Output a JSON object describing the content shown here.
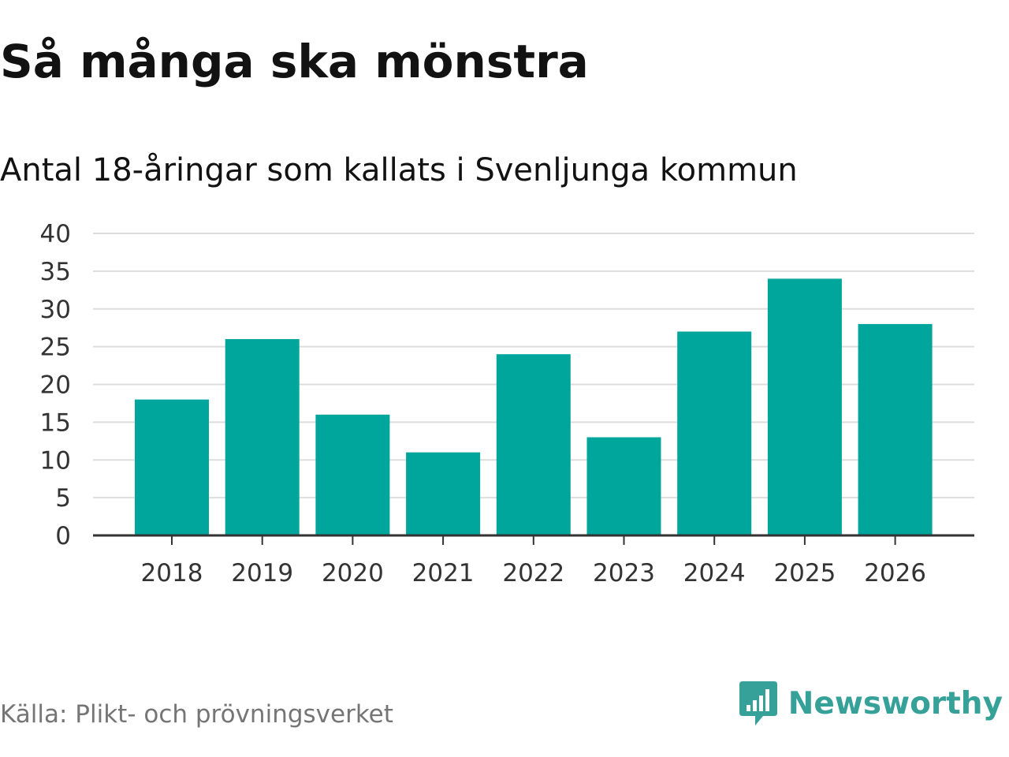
{
  "title": "Så många ska mönstra",
  "subtitle": "Antal 18-åringar som kallats i Svenljunga kommun",
  "source": "Källa: Plikt- och prövningsverket",
  "brand": {
    "name": "Newsworthy",
    "icon": "newsworthy-logo-icon",
    "color": "#36a198"
  },
  "colors": {
    "bar": "#00a59c",
    "grid": "#dddddd",
    "axis": "#333333"
  },
  "chart_data": {
    "type": "bar",
    "categories": [
      "2018",
      "2019",
      "2020",
      "2021",
      "2022",
      "2023",
      "2024",
      "2025",
      "2026"
    ],
    "values": [
      18,
      26,
      16,
      11,
      24,
      13,
      27,
      34,
      28
    ],
    "ylim": [
      0,
      40
    ],
    "yticks": [
      0,
      5,
      10,
      15,
      20,
      25,
      30,
      35,
      40
    ],
    "xlabel": "",
    "ylabel": "",
    "grid": true
  }
}
